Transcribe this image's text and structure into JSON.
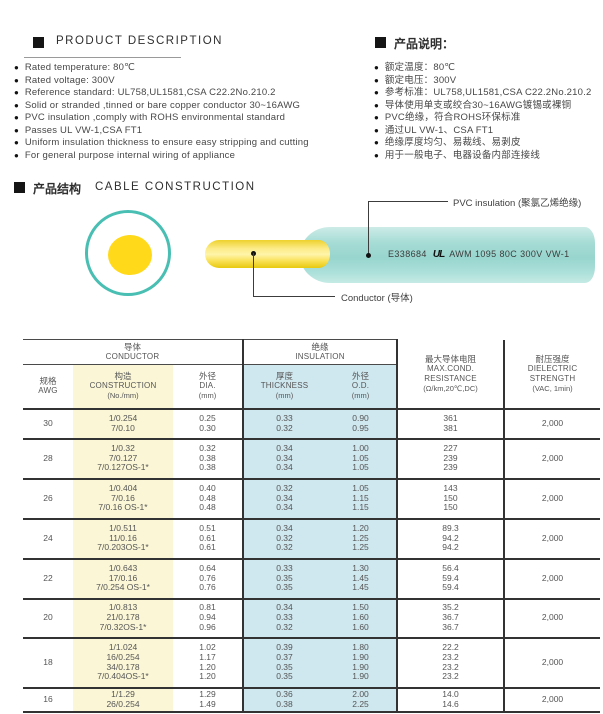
{
  "product_description": {
    "title_en": "PRODUCT DESCRIPTION",
    "bullets_en": [
      "Rated temperature: 80℃",
      "Rated voltage: 300V",
      "Reference standard: UL758,UL1581,CSA C22.2No.210.2",
      "Solid or stranded ,tinned or bare copper conductor 30~16AWG",
      "PVC insulation ,comply with ROHS environmental standard",
      "Passes UL VW-1,CSA FT1",
      "Uniform insulation thickness to ensure easy stripping and cutting",
      "For general purpose internal wiring of appliance"
    ],
    "title_zh": "产品说明：",
    "bullets_zh": [
      "额定温度：80℃",
      "额定电压：300V",
      "参考标准：UL758,UL1581,CSA C22.2No.210.2",
      "导体使用单支或绞合30~16AWG镀锡或裸铜",
      "PVC绝缘，符合ROHS环保标准",
      "通过UL VW-1、CSA FT1",
      "绝缘厚度均匀、易裁线、易剥皮",
      "用于一般电子、电器设备内部连接线"
    ]
  },
  "cable_construction": {
    "title_zh": "产品结构",
    "title_en": "CABLE CONSTRUCTION",
    "insulation_label": "PVC insulation (聚氯乙烯绝缘)",
    "conductor_label": "Conductor (导体)",
    "print_cert": "E338684",
    "print_ul": "UL",
    "print_text": "AWM 1095 80C 300V VW-1"
  },
  "table": {
    "conductor_group": {
      "zh": "导体",
      "en": "CONDUCTOR"
    },
    "insulation_group": {
      "zh": "绝缘",
      "en": "INSULATION"
    },
    "col_awg": {
      "zh": "规格",
      "en": "AWG"
    },
    "col_construction": {
      "zh": "构造",
      "en": "CONSTRUCTION",
      "unit": "(No./mm)"
    },
    "col_dia": {
      "zh": "外径",
      "en": "DIA.",
      "unit": "(mm)"
    },
    "col_thickness": {
      "zh": "厚度",
      "en": "THICKNESS",
      "unit": "(mm)"
    },
    "col_od": {
      "zh": "外径",
      "en": "O.D.",
      "unit": "(mm)"
    },
    "col_resistance": {
      "zh": "最大导体电阻",
      "en1": "MAX.COND.",
      "en2": "RESISTANCE",
      "unit": "(Ω/km,20℃,DC)"
    },
    "col_dielectric": {
      "zh": "耐压强度",
      "en1": "DIELECTRIC",
      "en2": "STRENGTH",
      "unit": "(VAC, 1min)"
    },
    "rows": [
      {
        "awg": "30",
        "construction": [
          "1/0.254",
          "7/0.10"
        ],
        "dia": [
          "0.25",
          "0.30"
        ],
        "thickness": [
          "0.33",
          "0.32"
        ],
        "od": [
          "0.90",
          "0.95"
        ],
        "resistance": [
          "361",
          "381"
        ],
        "dielectric": "2,000"
      },
      {
        "awg": "28",
        "construction": [
          "1/0.32",
          "7/0.127",
          "7/0.127OS-1*"
        ],
        "dia": [
          "0.32",
          "0.38",
          "0.38"
        ],
        "thickness": [
          "0.34",
          "0.34",
          "0.34"
        ],
        "od": [
          "1.00",
          "1.05",
          "1.05"
        ],
        "resistance": [
          "227",
          "239",
          "239"
        ],
        "dielectric": "2,000"
      },
      {
        "awg": "26",
        "construction": [
          "1/0.404",
          "7/0.16",
          "7/0.16 OS-1*"
        ],
        "dia": [
          "0.40",
          "0.48",
          "0.48"
        ],
        "thickness": [
          "0.32",
          "0.34",
          "0.34"
        ],
        "od": [
          "1.05",
          "1.15",
          "1.15"
        ],
        "resistance": [
          "143",
          "150",
          "150"
        ],
        "dielectric": "2,000"
      },
      {
        "awg": "24",
        "construction": [
          "1/0.511",
          "11/0.16",
          "7/0.203OS-1*"
        ],
        "dia": [
          "0.51",
          "0.61",
          "0.61"
        ],
        "thickness": [
          "0.34",
          "0.32",
          "0.32"
        ],
        "od": [
          "1.20",
          "1.25",
          "1.25"
        ],
        "resistance": [
          "89.3",
          "94.2",
          "94.2"
        ],
        "dielectric": "2,000"
      },
      {
        "awg": "22",
        "construction": [
          "1/0.643",
          "17/0.16",
          "7/0.254 OS-1*"
        ],
        "dia": [
          "0.64",
          "0.76",
          "0.76"
        ],
        "thickness": [
          "0.33",
          "0.35",
          "0.35"
        ],
        "od": [
          "1.30",
          "1.45",
          "1.45"
        ],
        "resistance": [
          "56.4",
          "59.4",
          "59.4"
        ],
        "dielectric": "2,000"
      },
      {
        "awg": "20",
        "construction": [
          "1/0.813",
          "21/0.178",
          "7/0.32OS-1*"
        ],
        "dia": [
          "0.81",
          "0.94",
          "0.96"
        ],
        "thickness": [
          "0.34",
          "0.33",
          "0.32"
        ],
        "od": [
          "1.50",
          "1.60",
          "1.60"
        ],
        "resistance": [
          "35.2",
          "36.7",
          "36.7"
        ],
        "dielectric": "2,000"
      },
      {
        "awg": "18",
        "construction": [
          "1/1.024",
          "16/0.254",
          "34/0.178",
          "7/0.404OS-1*"
        ],
        "dia": [
          "1.02",
          "1.17",
          "1.20",
          "1.20"
        ],
        "thickness": [
          "0.39",
          "0.37",
          "0.35",
          "0.35"
        ],
        "od": [
          "1.80",
          "1.90",
          "1.90",
          "1.90"
        ],
        "resistance": [
          "22.2",
          "23.2",
          "23.2",
          "23.2"
        ],
        "dielectric": "2,000"
      },
      {
        "awg": "16",
        "construction": [
          "1/1.29",
          "26/0.254"
        ],
        "dia": [
          "1.29",
          "1.49"
        ],
        "thickness": [
          "0.36",
          "0.38"
        ],
        "od": [
          "2.00",
          "2.25"
        ],
        "resistance": [
          "14.0",
          "14.6"
        ],
        "dielectric": "2,000"
      }
    ]
  },
  "colors": {
    "teal_ring": "#49beb3",
    "conductor_yellow": "#ffd91a",
    "insulation_fill": "#9ad5ce",
    "construction_col_bg": "#faf6d6",
    "insulation_col_bg": "#cfe7ef"
  }
}
